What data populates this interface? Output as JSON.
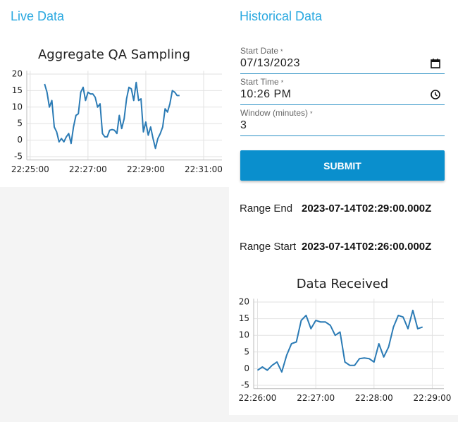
{
  "live_panel": {
    "title": "Live Data"
  },
  "historical_panel": {
    "title": "Historical Data",
    "fields": [
      {
        "label": "Start Date",
        "required_mark": "*",
        "value": "07/13/2023"
      },
      {
        "label": "Start Time",
        "required_mark": "*",
        "value": "10:26 PM"
      },
      {
        "label": "Window (minutes)",
        "required_mark": "*",
        "value": "3"
      }
    ],
    "submit": "SUBMIT",
    "range_end": {
      "label": "Range End",
      "value": "2023-07-14T02:29:00.000Z"
    },
    "range_start": {
      "label": "Range Start",
      "value": "2023-07-14T02:26:00.000Z"
    }
  },
  "chart_data": [
    {
      "type": "line",
      "title": "Aggregate QA Sampling",
      "color": "#2b7bb5",
      "grid": true,
      "x": [
        "22:25:30",
        "22:25:35",
        "22:25:40",
        "22:25:45",
        "22:25:50",
        "22:25:55",
        "22:26:00",
        "22:26:05",
        "22:26:10",
        "22:26:15",
        "22:26:20",
        "22:26:25",
        "22:26:30",
        "22:26:35",
        "22:26:40",
        "22:26:45",
        "22:26:50",
        "22:26:55",
        "22:27:00",
        "22:27:05",
        "22:27:10",
        "22:27:15",
        "22:27:20",
        "22:27:25",
        "22:27:30",
        "22:27:35",
        "22:27:40",
        "22:27:45",
        "22:27:50",
        "22:27:55",
        "22:28:00",
        "22:28:05",
        "22:28:10",
        "22:28:15",
        "22:28:20",
        "22:28:25",
        "22:28:30",
        "22:28:35",
        "22:28:40",
        "22:28:45",
        "22:28:50",
        "22:28:55",
        "22:29:00",
        "22:29:05",
        "22:29:10",
        "22:29:15",
        "22:29:20",
        "22:29:25",
        "22:29:30",
        "22:29:35",
        "22:29:40",
        "22:29:45",
        "22:29:50",
        "22:29:55",
        "22:30:00",
        "22:30:05",
        "22:30:10"
      ],
      "values": [
        17,
        14.5,
        10,
        12,
        4,
        2.5,
        -0.5,
        0.5,
        -0.5,
        1,
        2,
        -1,
        4,
        7.5,
        8,
        14.5,
        16,
        12,
        14.5,
        14,
        14,
        13,
        10,
        11,
        2,
        1,
        1,
        3,
        3.2,
        3,
        2,
        7.5,
        3.5,
        6.5,
        12.5,
        16,
        15.5,
        12,
        17.5,
        12,
        12.5,
        2.5,
        5.5,
        1.5,
        4,
        0.5,
        -2.5,
        0.5,
        2,
        4,
        9.5,
        8.5,
        11,
        15,
        14.5,
        13.5,
        13.5
      ],
      "xlim": [
        "22:24:53",
        "22:31:38"
      ],
      "xticks": [
        "22:25:00",
        "22:27:00",
        "22:29:00",
        "22:31:00"
      ],
      "ylim": [
        -6,
        21
      ],
      "yticks": [
        -5,
        0,
        5,
        10,
        15,
        20
      ]
    },
    {
      "type": "line",
      "title": "Data Received",
      "color": "#2b7bb5",
      "grid": true,
      "x": [
        "22:26:00",
        "22:26:05",
        "22:26:10",
        "22:26:15",
        "22:26:20",
        "22:26:25",
        "22:26:30",
        "22:26:35",
        "22:26:40",
        "22:26:45",
        "22:26:50",
        "22:26:55",
        "22:27:00",
        "22:27:05",
        "22:27:10",
        "22:27:15",
        "22:27:20",
        "22:27:25",
        "22:27:30",
        "22:27:35",
        "22:27:40",
        "22:27:45",
        "22:27:50",
        "22:27:55",
        "22:28:00",
        "22:28:05",
        "22:28:10",
        "22:28:15",
        "22:28:20",
        "22:28:25",
        "22:28:30",
        "22:28:35",
        "22:28:40",
        "22:28:45",
        "22:28:50"
      ],
      "values": [
        -0.5,
        0.5,
        -0.5,
        1,
        2,
        -1,
        4,
        7.5,
        8,
        14.5,
        16,
        12,
        14.5,
        14,
        14,
        13,
        10,
        11,
        2,
        1,
        1,
        3,
        3.2,
        3,
        2,
        7.5,
        3.5,
        6.5,
        12.5,
        16,
        15.5,
        12,
        17.5,
        12,
        12.5
      ],
      "xlim": [
        "22:25:56",
        "22:29:12"
      ],
      "xticks": [
        "22:26:00",
        "22:27:00",
        "22:28:00",
        "22:29:00"
      ],
      "ylim": [
        -6,
        21
      ],
      "yticks": [
        -5,
        0,
        5,
        10,
        15,
        20
      ]
    }
  ]
}
